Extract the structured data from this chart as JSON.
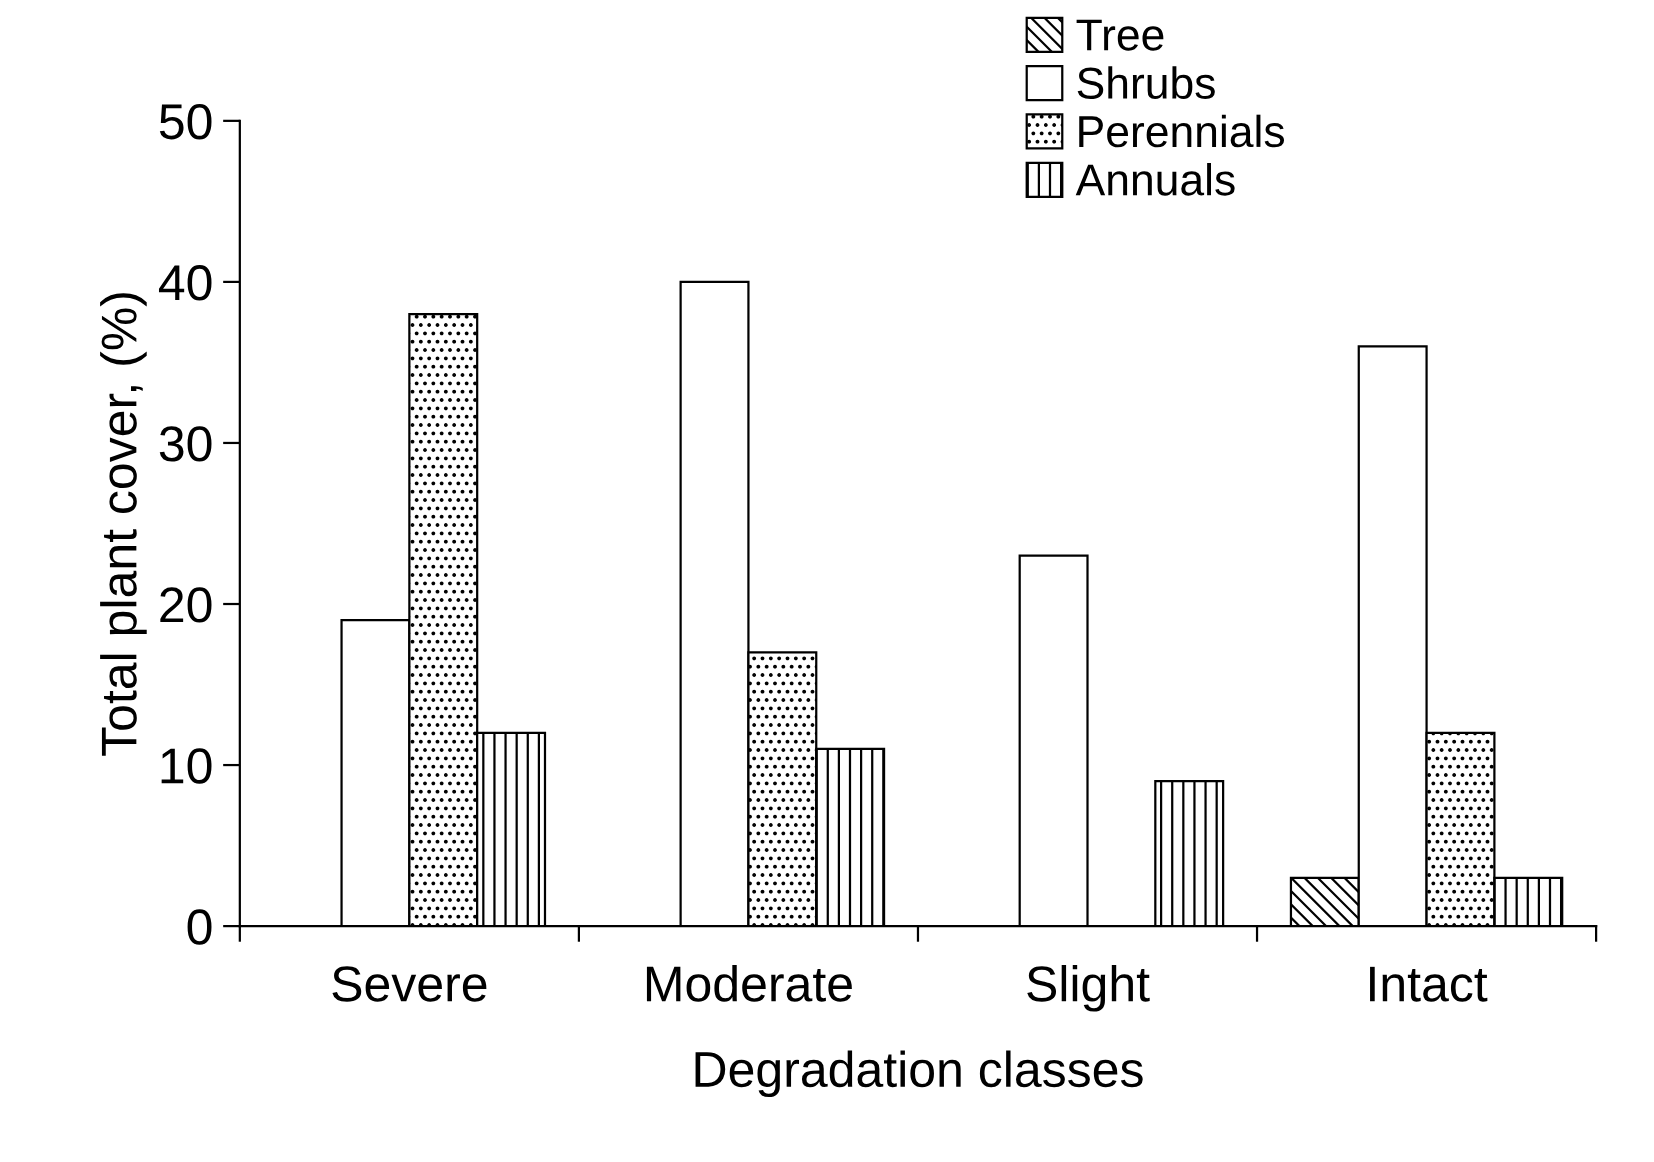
{
  "chart_data": {
    "type": "bar",
    "xlabel": "Degradation classes",
    "ylabel": "Total plant cover, (%)",
    "categories": [
      "Severe",
      "Moderate",
      "Slight",
      "Intact"
    ],
    "series": [
      {
        "name": "Tree",
        "color": "#000000",
        "values": [
          null,
          null,
          null,
          3
        ]
      },
      {
        "name": "Shrubs",
        "color": "#ffffff",
        "values": [
          19,
          40,
          23,
          36
        ]
      },
      {
        "name": "Perennials",
        "color": "#000000",
        "values": [
          38,
          17,
          null,
          12
        ]
      },
      {
        "name": "Annuals",
        "color": "#000000",
        "values": [
          12,
          11,
          9,
          3
        ]
      }
    ],
    "ylim": [
      0,
      50
    ],
    "yticks": [
      0,
      10,
      20,
      30,
      40,
      50
    ],
    "grid": false,
    "legend": "top right"
  }
}
